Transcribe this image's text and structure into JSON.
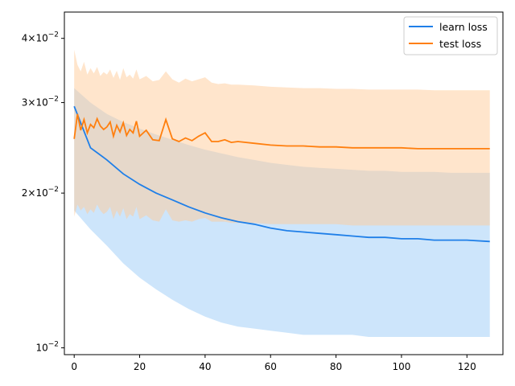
{
  "chart_data": {
    "type": "line",
    "title": "",
    "xlabel": "",
    "ylabel": "",
    "xlim": [
      -3,
      131
    ],
    "ylim": [
      0.0097,
      0.045
    ],
    "yscale": "log",
    "grid": false,
    "legend_position": "top-right",
    "x_ticks": [
      0,
      20,
      40,
      60,
      80,
      100,
      120
    ],
    "x_tick_labels": [
      "0",
      "20",
      "40",
      "60",
      "80",
      "100",
      "120"
    ],
    "y_ticks": [
      0.01,
      0.02,
      0.03,
      0.04
    ],
    "y_tick_labels": [
      "10^-2",
      "2×10^-2",
      "3×10^-2",
      "4×10^-2"
    ],
    "series": [
      {
        "name": "learn loss",
        "color": "#1f7fe8",
        "band_color": "#9ccbf7",
        "x": [
          0,
          5,
          10,
          15,
          20,
          25,
          30,
          35,
          40,
          45,
          50,
          55,
          60,
          65,
          70,
          75,
          80,
          85,
          90,
          95,
          100,
          105,
          110,
          115,
          120,
          127
        ],
        "y": [
          0.0295,
          0.0245,
          0.0232,
          0.0218,
          0.0208,
          0.02,
          0.0194,
          0.0188,
          0.0183,
          0.0179,
          0.0176,
          0.0174,
          0.0171,
          0.0169,
          0.0168,
          0.0167,
          0.0166,
          0.0165,
          0.0164,
          0.0164,
          0.0163,
          0.0163,
          0.0162,
          0.0162,
          0.0162,
          0.0161
        ],
        "lower": [
          0.0185,
          0.017,
          0.0158,
          0.0146,
          0.0137,
          0.013,
          0.0124,
          0.0119,
          0.0115,
          0.0112,
          0.011,
          0.0109,
          0.0108,
          0.0107,
          0.0106,
          0.0106,
          0.0106,
          0.0106,
          0.0105,
          0.0105,
          0.0105,
          0.0105,
          0.0105,
          0.0105,
          0.0105,
          0.0105
        ],
        "upper": [
          0.032,
          0.03,
          0.0285,
          0.0275,
          0.0267,
          0.026,
          0.0254,
          0.0248,
          0.0243,
          0.0239,
          0.0235,
          0.0232,
          0.0229,
          0.0227,
          0.0225,
          0.0224,
          0.0223,
          0.0222,
          0.0221,
          0.0221,
          0.022,
          0.022,
          0.022,
          0.0219,
          0.0219,
          0.0219
        ]
      },
      {
        "name": "test loss",
        "color": "#ff7f0e",
        "band_color": "#ffcc99",
        "x": [
          0,
          1,
          2,
          3,
          4,
          5,
          6,
          7,
          8,
          9,
          10,
          11,
          12,
          13,
          14,
          15,
          16,
          17,
          18,
          19,
          20,
          22,
          24,
          26,
          28,
          30,
          32,
          34,
          36,
          38,
          40,
          42,
          44,
          46,
          48,
          50,
          55,
          60,
          65,
          70,
          75,
          80,
          85,
          90,
          95,
          100,
          105,
          110,
          115,
          120,
          127
        ],
        "y": [
          0.0255,
          0.0285,
          0.0265,
          0.0278,
          0.0262,
          0.0272,
          0.0268,
          0.0279,
          0.027,
          0.0266,
          0.0269,
          0.0275,
          0.0258,
          0.0271,
          0.0263,
          0.0274,
          0.0259,
          0.0266,
          0.0262,
          0.0276,
          0.0258,
          0.0265,
          0.0254,
          0.0253,
          0.0278,
          0.0255,
          0.0252,
          0.0256,
          0.0253,
          0.0258,
          0.0262,
          0.0252,
          0.0252,
          0.0254,
          0.0251,
          0.0252,
          0.025,
          0.0248,
          0.0247,
          0.0247,
          0.0246,
          0.0246,
          0.0245,
          0.0245,
          0.0245,
          0.0245,
          0.0244,
          0.0244,
          0.0244,
          0.0244,
          0.0244
        ],
        "lower": [
          0.018,
          0.019,
          0.0185,
          0.0188,
          0.0182,
          0.0186,
          0.0183,
          0.019,
          0.0185,
          0.0182,
          0.0184,
          0.0188,
          0.0178,
          0.0185,
          0.018,
          0.0187,
          0.0178,
          0.0182,
          0.018,
          0.0188,
          0.0178,
          0.0181,
          0.0177,
          0.0176,
          0.0186,
          0.0177,
          0.0176,
          0.0177,
          0.0176,
          0.0178,
          0.0179,
          0.0176,
          0.0176,
          0.0176,
          0.0175,
          0.0175,
          0.0175,
          0.0174,
          0.0174,
          0.0174,
          0.0174,
          0.0174,
          0.0173,
          0.0173,
          0.0173,
          0.0173,
          0.0173,
          0.0173,
          0.0173,
          0.0173,
          0.0173
        ],
        "upper": [
          0.038,
          0.0355,
          0.0345,
          0.036,
          0.034,
          0.035,
          0.0342,
          0.0352,
          0.0338,
          0.0344,
          0.034,
          0.0348,
          0.0335,
          0.0346,
          0.0332,
          0.035,
          0.0336,
          0.034,
          0.0334,
          0.0348,
          0.0333,
          0.0338,
          0.033,
          0.0332,
          0.0345,
          0.0333,
          0.0328,
          0.0334,
          0.033,
          0.0333,
          0.0336,
          0.0328,
          0.0326,
          0.0327,
          0.0325,
          0.0325,
          0.0324,
          0.0322,
          0.0321,
          0.032,
          0.032,
          0.0319,
          0.0319,
          0.0318,
          0.0318,
          0.0318,
          0.0318,
          0.0317,
          0.0317,
          0.0317,
          0.0317
        ]
      }
    ]
  }
}
